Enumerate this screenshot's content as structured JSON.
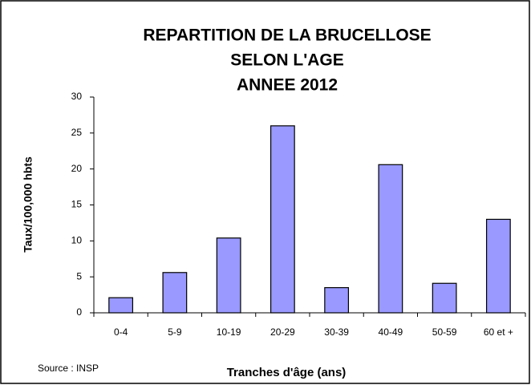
{
  "chart_data": {
    "type": "bar",
    "title": [
      "REPARTITION DE LA BRUCELLOSE",
      "SELON L'AGE",
      "ANNEE 2012"
    ],
    "y_label": "Taux/100,000 hbts",
    "x_label": "Tranches d'âge (ans)",
    "source": "Source : INSP",
    "categories": [
      "0-4",
      "5-9",
      "10-19",
      "20-29",
      "30-39",
      "40-49",
      "50-59",
      "60 et +"
    ],
    "values": [
      2.1,
      5.6,
      10.4,
      26,
      3.5,
      20.6,
      4.1,
      13
    ],
    "color": "#9999ff",
    "ylim": [
      0,
      30
    ],
    "yticks": [
      0,
      5,
      10,
      15,
      20,
      25,
      30
    ],
    "grid": false
  }
}
